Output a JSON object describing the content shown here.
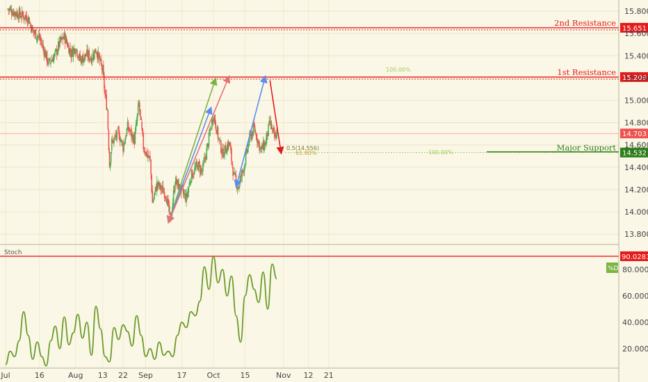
{
  "chart_data": [
    {
      "type": "candlestick",
      "price_axis": {
        "ylim": [
          13.72,
          15.9
        ],
        "ticks": [
          "15.800",
          "15.600",
          "15.400",
          "15.200",
          "15.000",
          "14.800",
          "14.600",
          "14.400",
          "14.200",
          "14.000",
          "13.800"
        ]
      },
      "time_axis": {
        "labels": [
          "Jul",
          "16",
          "Aug",
          "13",
          "22",
          "Sep",
          "17",
          "Oct",
          "15",
          "Nov",
          "12",
          "21"
        ],
        "dates": [
          "2018-07-01",
          "2018-07-16",
          "2018-08-01",
          "2018-08-13",
          "2018-08-22",
          "2018-09-01",
          "2018-09-17",
          "2018-10-01",
          "2018-10-15",
          "2018-11-01",
          "2018-11-12",
          "2018-11-21"
        ]
      },
      "price_path": [
        [
          "2018-07-02",
          15.82
        ],
        [
          "2018-07-06",
          15.78
        ],
        [
          "2018-07-11",
          15.74
        ],
        [
          "2018-07-13",
          15.62
        ],
        [
          "2018-07-16",
          15.56
        ],
        [
          "2018-07-18",
          15.45
        ],
        [
          "2018-07-20",
          15.33
        ],
        [
          "2018-07-23",
          15.41
        ],
        [
          "2018-07-25",
          15.52
        ],
        [
          "2018-07-27",
          15.57
        ],
        [
          "2018-07-30",
          15.42
        ],
        [
          "2018-08-01",
          15.48
        ],
        [
          "2018-08-03",
          15.36
        ],
        [
          "2018-08-06",
          15.41
        ],
        [
          "2018-08-08",
          15.38
        ],
        [
          "2018-08-10",
          15.46
        ],
        [
          "2018-08-13",
          15.26
        ],
        [
          "2018-08-14",
          15.05
        ],
        [
          "2018-08-15",
          14.92
        ],
        [
          "2018-08-16",
          14.42
        ],
        [
          "2018-08-17",
          14.62
        ],
        [
          "2018-08-20",
          14.71
        ],
        [
          "2018-08-22",
          14.58
        ],
        [
          "2018-08-24",
          14.76
        ],
        [
          "2018-08-27",
          14.64
        ],
        [
          "2018-08-29",
          14.97
        ],
        [
          "2018-08-31",
          14.58
        ],
        [
          "2018-09-03",
          14.46
        ],
        [
          "2018-09-04",
          14.08
        ],
        [
          "2018-09-06",
          14.25
        ],
        [
          "2018-09-10",
          14.16
        ],
        [
          "2018-09-12",
          13.92
        ],
        [
          "2018-09-14",
          14.28
        ],
        [
          "2018-09-17",
          14.18
        ],
        [
          "2018-09-19",
          14.12
        ],
        [
          "2018-09-21",
          14.32
        ],
        [
          "2018-09-24",
          14.42
        ],
        [
          "2018-09-26",
          14.36
        ],
        [
          "2018-09-28",
          14.55
        ],
        [
          "2018-10-01",
          14.88
        ],
        [
          "2018-10-03",
          14.68
        ],
        [
          "2018-10-05",
          14.52
        ],
        [
          "2018-10-08",
          14.62
        ],
        [
          "2018-10-10",
          14.32
        ],
        [
          "2018-10-12",
          14.22
        ],
        [
          "2018-10-15",
          14.45
        ],
        [
          "2018-10-17",
          14.66
        ],
        [
          "2018-10-19",
          14.75
        ],
        [
          "2018-10-22",
          14.55
        ],
        [
          "2018-10-24",
          14.62
        ],
        [
          "2018-10-26",
          14.8
        ],
        [
          "2018-10-28",
          14.66
        ],
        [
          "2018-10-29",
          14.7
        ]
      ],
      "levels": [
        {
          "label": "2nd Resistance",
          "value": 15.651,
          "tag": "15.651",
          "color": "#e31b1b"
        },
        {
          "label": "1st Resistance",
          "value": 15.209,
          "tag": "15.209",
          "color": "#e31b1b"
        },
        {
          "label": "",
          "value": 14.703,
          "tag": "14.703",
          "color": "#ef5350"
        },
        {
          "label": "Major Support",
          "value": 14.532,
          "tag": "14.532",
          "color": "#2e7d1c"
        }
      ],
      "fib_labels": [
        "100.00%",
        "0.5(14.556)",
        "61.80%",
        "100.00%"
      ],
      "arrows": [
        {
          "color": "#7cb342",
          "from": [
            "2018-09-11",
            13.9
          ],
          "to": [
            "2018-10-02",
            15.2
          ]
        },
        {
          "color": "#5b8def",
          "from": [
            "2018-09-11",
            13.9
          ],
          "to": [
            "2018-09-30",
            14.94
          ]
        },
        {
          "color": "#e57373",
          "from": [
            "2018-09-11",
            13.9
          ],
          "to": [
            "2018-10-08",
            15.22
          ]
        },
        {
          "color": "#5b8def",
          "from": [
            "2018-10-11",
            14.22
          ],
          "to": [
            "2018-10-24",
            15.22
          ]
        },
        {
          "color": "#e31b1b",
          "from": [
            "2018-10-26",
            15.18
          ],
          "to": [
            "2018-10-31",
            14.52
          ]
        }
      ],
      "colors": {
        "up": "#4caf50",
        "down": "#ef5350"
      }
    },
    {
      "type": "line",
      "title": "Stoch",
      "legend": "%D",
      "ylim": [
        0,
        100
      ],
      "ticks": [
        "80.0000",
        "60.0000",
        "40.0000",
        "20.0000"
      ],
      "line_color": "#6a9a2a",
      "top_level": {
        "value": 90.0281,
        "tag": "90.0281",
        "color": "#e31b1b"
      },
      "series": [
        {
          "x": [
            "2018-07-01",
            "2018-07-03",
            "2018-07-05",
            "2018-07-07",
            "2018-07-09",
            "2018-07-11",
            "2018-07-13",
            "2018-07-15",
            "2018-07-17",
            "2018-07-19",
            "2018-07-21",
            "2018-07-23",
            "2018-07-25",
            "2018-07-27",
            "2018-07-29",
            "2018-07-31",
            "2018-08-02",
            "2018-08-04",
            "2018-08-06",
            "2018-08-08",
            "2018-08-10",
            "2018-08-12",
            "2018-08-14",
            "2018-08-16",
            "2018-08-18",
            "2018-08-20",
            "2018-08-22",
            "2018-08-24",
            "2018-08-26",
            "2018-08-28",
            "2018-08-30",
            "2018-09-01",
            "2018-09-03",
            "2018-09-05",
            "2018-09-07",
            "2018-09-09",
            "2018-09-11",
            "2018-09-13",
            "2018-09-15",
            "2018-09-17",
            "2018-09-19",
            "2018-09-21",
            "2018-09-23",
            "2018-09-25",
            "2018-09-27",
            "2018-09-29",
            "2018-10-01",
            "2018-10-03",
            "2018-10-05",
            "2018-10-07",
            "2018-10-09",
            "2018-10-11",
            "2018-10-13",
            "2018-10-15",
            "2018-10-17",
            "2018-10-19",
            "2018-10-21",
            "2018-10-23",
            "2018-10-25",
            "2018-10-27",
            "2018-10-29"
          ],
          "values": [
            8,
            18,
            14,
            26,
            48,
            30,
            12,
            25,
            14,
            7,
            26,
            37,
            20,
            44,
            23,
            32,
            46,
            28,
            40,
            15,
            52,
            35,
            14,
            10,
            36,
            27,
            38,
            33,
            22,
            45,
            30,
            14,
            20,
            12,
            25,
            15,
            18,
            14,
            30,
            40,
            36,
            48,
            45,
            56,
            82,
            65,
            90,
            70,
            80,
            60,
            75,
            45,
            25,
            60,
            76,
            65,
            55,
            78,
            50,
            84,
            73
          ]
        }
      ]
    }
  ]
}
